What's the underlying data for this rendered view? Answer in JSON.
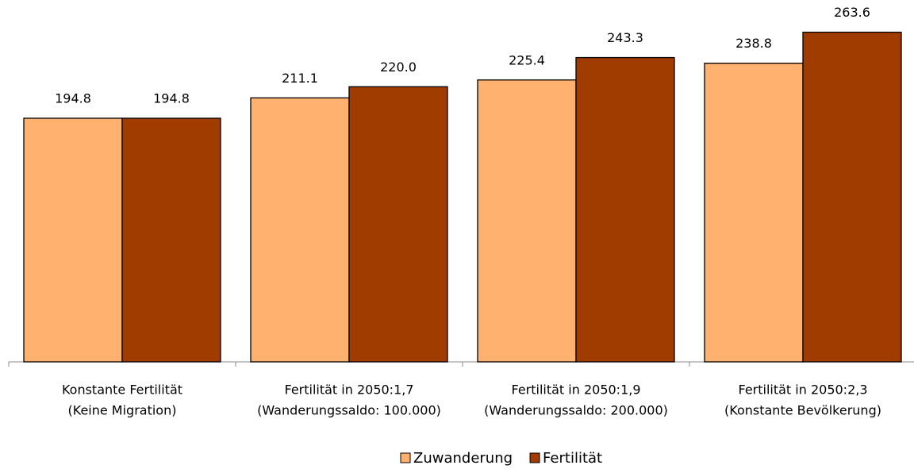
{
  "chart_data": {
    "type": "bar",
    "categories": [
      [
        "Konstante Fertilität",
        "(Keine Migration)"
      ],
      [
        "Fertilität in 2050:1,7",
        "(Wanderungssaldo: 100.000)"
      ],
      [
        "Fertilität in 2050:1,9",
        "(Wanderungssaldo: 200.000)"
      ],
      [
        "Fertilität in 2050:2,3",
        "(Konstante Bevölkerung)"
      ]
    ],
    "series": [
      {
        "name": "Zuwanderung",
        "color": "#FFB170",
        "values": [
          194.8,
          211.1,
          225.4,
          238.8
        ],
        "value_labels": [
          "194.8",
          "211.1",
          "225.4",
          "238.8"
        ]
      },
      {
        "name": "Fertilität",
        "color": "#A03C00",
        "values": [
          194.8,
          220.0,
          243.3,
          263.6
        ],
        "value_labels": [
          "194.8",
          "220.0",
          "243.3",
          "263.6"
        ]
      }
    ]
  }
}
